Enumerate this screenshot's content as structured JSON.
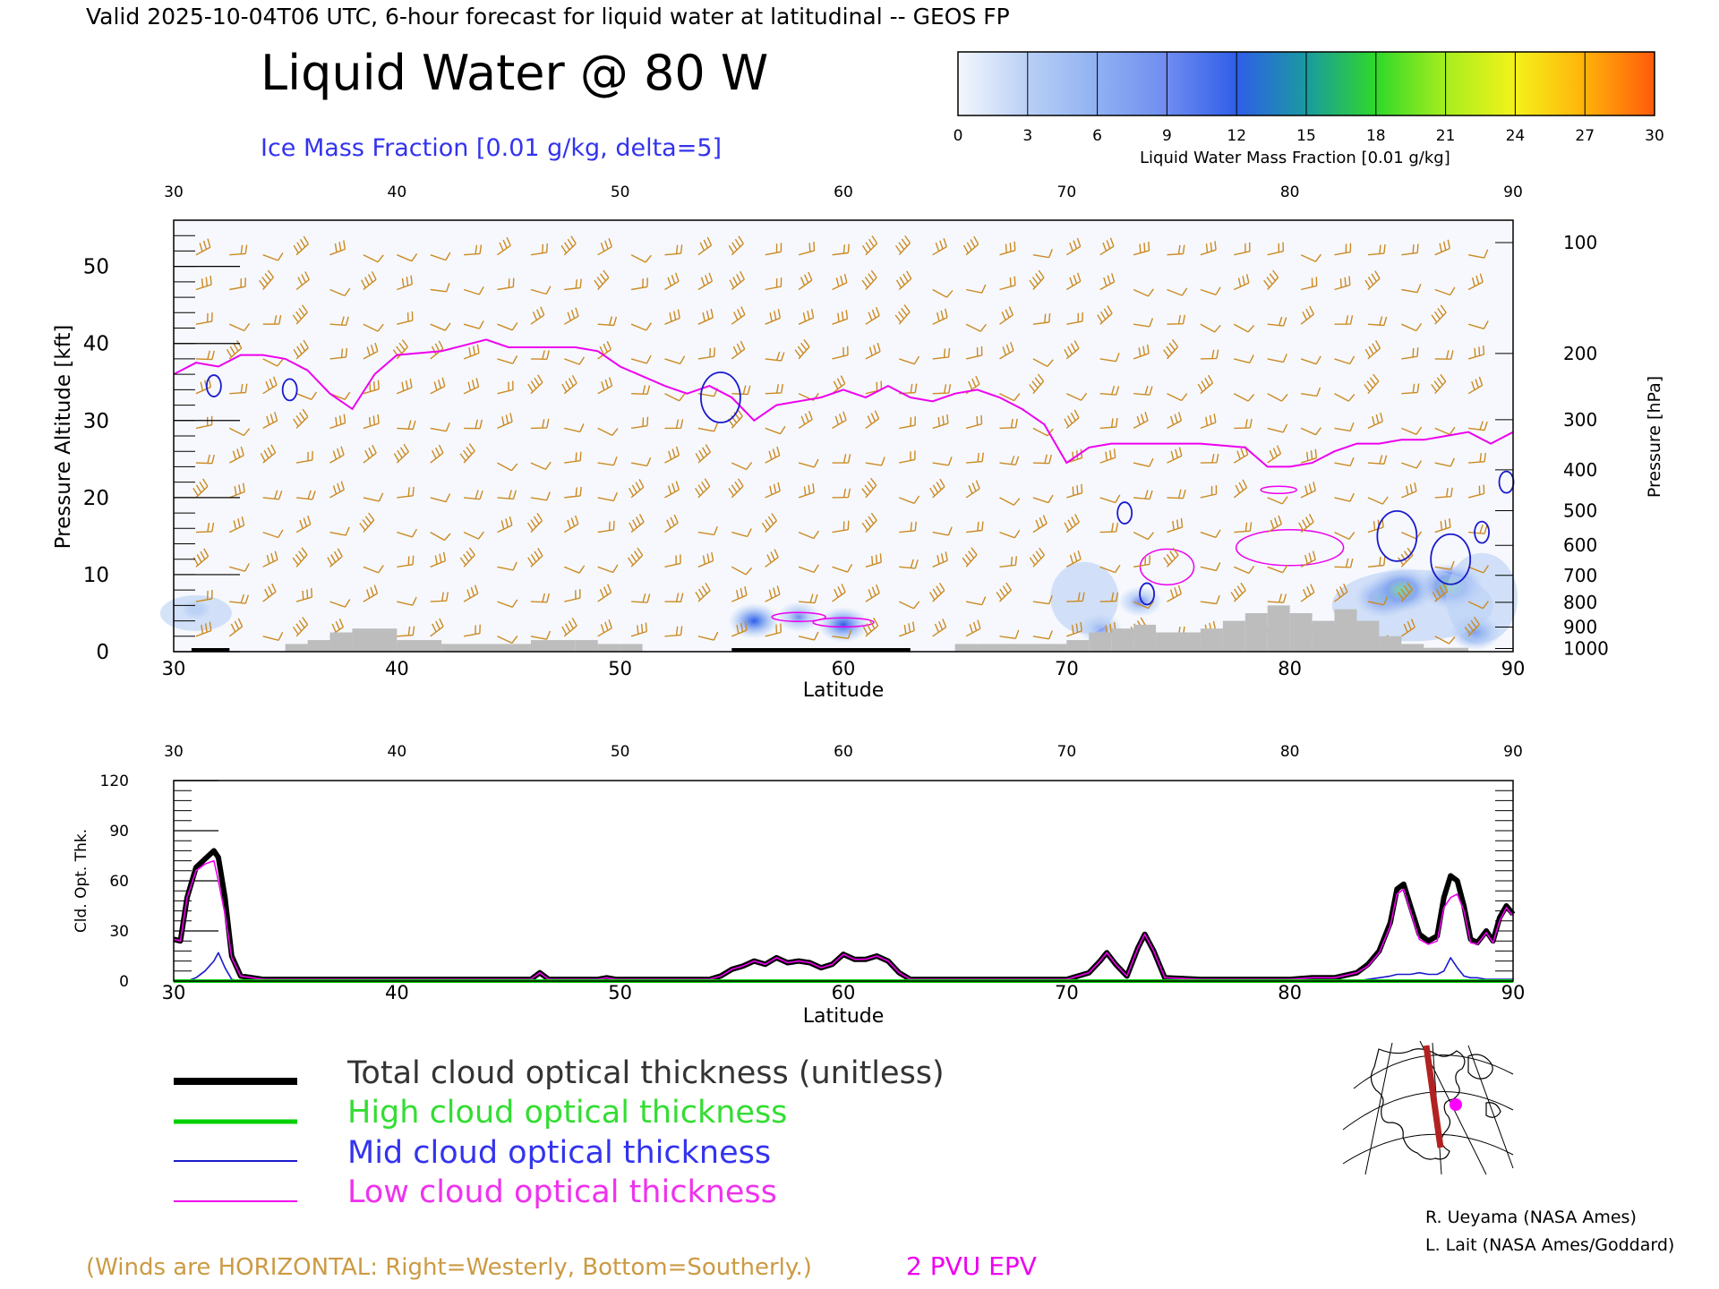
{
  "header": {
    "valid_line": "Valid 2025-10-04T06 UTC, 6-hour forecast for liquid water at latitudinal -- GEOS FP",
    "title": "Liquid Water @ 80 W",
    "subtitle": "Ice Mass Fraction [0.01 g/kg, delta=5]"
  },
  "colorbar": {
    "ticks": [
      "0",
      "3",
      "6",
      "9",
      "12",
      "15",
      "18",
      "21",
      "24",
      "27",
      "30"
    ],
    "colors": [
      "#f4f7fd",
      "#b9d0f5",
      "#8fb1f2",
      "#6f8cf0",
      "#2f5ee8",
      "#1a9aa0",
      "#2fd82a",
      "#a6ee1e",
      "#f4f21a",
      "#ffb20a",
      "#ff5a0a"
    ],
    "label": "Liquid Water Mass Fraction [0.01 g/kg]"
  },
  "chart_data": [
    {
      "type": "heatmap",
      "title": "Liquid Water @ 80 W",
      "xlabel": "Latitude",
      "ylabel": "Pressure Altitude [kft]",
      "ylabel_right": "Pressure [hPa]",
      "xlim": [
        30,
        90
      ],
      "ylim": [
        0,
        56
      ],
      "x_ticks": [
        "30",
        "40",
        "50",
        "60",
        "70",
        "80",
        "90"
      ],
      "x_tick_values": [
        30,
        40,
        50,
        60,
        70,
        80,
        90
      ],
      "y_ticks": [
        "0",
        "10",
        "20",
        "30",
        "40",
        "50"
      ],
      "y_tick_values": [
        0,
        10,
        20,
        30,
        40,
        50
      ],
      "pressure_ticks": [
        "100",
        "200",
        "300",
        "400",
        "500",
        "600",
        "700",
        "800",
        "900",
        "1000"
      ],
      "pressure_tick_kft": [
        53.1,
        38.7,
        30.1,
        23.6,
        18.3,
        13.8,
        9.9,
        6.4,
        3.2,
        0.4
      ],
      "epv_2pvu_line": {
        "lat": [
          30,
          31,
          32,
          33,
          34,
          35,
          36,
          37,
          38,
          39,
          40,
          42,
          44,
          45,
          46,
          48,
          49,
          50,
          52,
          53,
          54,
          55,
          56,
          57,
          58,
          59,
          60,
          61,
          62,
          63,
          64,
          65,
          66,
          67,
          68,
          69,
          70,
          71,
          72,
          73,
          74,
          76,
          78,
          79,
          80,
          81,
          82,
          83,
          84,
          85,
          86,
          87,
          88,
          89,
          90
        ],
        "kft": [
          36,
          37.5,
          37,
          38.5,
          38.5,
          38,
          36.5,
          33.5,
          31.5,
          36,
          38.5,
          39,
          40.5,
          39.5,
          39.5,
          39.5,
          39,
          37,
          34.5,
          33.5,
          34.5,
          33,
          30,
          32,
          32.5,
          33,
          34,
          33,
          34.5,
          33,
          32.5,
          33.5,
          34,
          33,
          31.5,
          29.5,
          24.5,
          26.5,
          27,
          27,
          27,
          27,
          26.5,
          24,
          24,
          24.5,
          26,
          27,
          27,
          27.5,
          27.5,
          28,
          28.5,
          27,
          28.5
        ]
      },
      "ice_mass_fraction_contours": [
        {
          "lat": 31.8,
          "kft": 34.5
        },
        {
          "lat": 35.2,
          "kft": 34
        },
        {
          "lat": 54.5,
          "kft": 33
        },
        {
          "lat": 72.6,
          "kft": 18
        },
        {
          "lat": 73.6,
          "kft": 7.5
        },
        {
          "lat": 84.8,
          "kft": 15
        },
        {
          "lat": 87.2,
          "kft": 12
        },
        {
          "lat": 88.6,
          "kft": 15.5
        },
        {
          "lat": 89.7,
          "kft": 22
        }
      ],
      "liquid_water_blobs": [
        {
          "lat": 31,
          "kft": 5.5,
          "value": 3
        },
        {
          "lat": 56,
          "kft": 4,
          "value": 12
        },
        {
          "lat": 58,
          "kft": 4.5,
          "value": 9
        },
        {
          "lat": 60,
          "kft": 3.5,
          "value": 12
        },
        {
          "lat": 71.5,
          "kft": 3,
          "value": 9
        },
        {
          "lat": 73.3,
          "kft": 6.5,
          "value": 9
        },
        {
          "lat": 84.2,
          "kft": 7,
          "value": 15
        },
        {
          "lat": 85,
          "kft": 8,
          "value": 18
        },
        {
          "lat": 87.2,
          "kft": 8.5,
          "value": 18
        },
        {
          "lat": 88.3,
          "kft": 2.5,
          "value": 12
        }
      ],
      "terrain": {
        "lat": [
          30,
          32.5,
          33.5,
          35,
          36,
          37,
          38,
          40,
          42,
          44,
          46,
          48,
          49,
          50,
          51,
          52,
          53,
          55,
          58,
          60,
          62,
          63,
          64,
          65,
          66,
          68,
          70,
          71,
          72,
          73,
          74,
          75,
          76,
          77,
          78,
          79,
          80,
          81,
          82,
          83,
          84,
          85,
          86,
          87,
          88,
          89,
          90
        ],
        "kft": [
          0,
          0,
          0,
          1,
          1.5,
          2.5,
          3,
          1.5,
          1,
          1,
          1.5,
          1.5,
          1,
          1,
          0,
          0,
          0,
          0,
          0,
          0,
          0,
          0,
          0,
          1,
          1,
          1,
          1.5,
          2.5,
          3,
          3.5,
          2.5,
          2.5,
          3,
          4,
          5,
          6,
          5,
          4,
          5.5,
          4,
          2,
          1,
          0.5,
          0.5,
          0,
          0,
          0
        ]
      }
    },
    {
      "type": "line",
      "xlabel": "Latitude",
      "ylabel": "Cld. Opt. Thk.",
      "xlim": [
        30,
        90
      ],
      "ylim": [
        0,
        120
      ],
      "x_ticks": [
        "30",
        "40",
        "50",
        "60",
        "70",
        "80",
        "90"
      ],
      "x_tick_values": [
        30,
        40,
        50,
        60,
        70,
        80,
        90
      ],
      "y_ticks": [
        "0",
        "30",
        "60",
        "90",
        "120"
      ],
      "y_tick_values": [
        0,
        30,
        60,
        90,
        120
      ],
      "x": [
        30,
        30.3,
        30.6,
        31,
        31.4,
        31.8,
        32,
        32.3,
        32.6,
        33,
        34,
        40,
        45,
        46,
        46.4,
        46.8,
        47.5,
        49,
        49.4,
        49.8,
        52,
        54,
        54.5,
        55,
        55.5,
        56,
        56.5,
        57,
        57.5,
        58,
        58.5,
        59,
        59.5,
        60,
        60.5,
        61,
        61.5,
        62,
        62.5,
        63,
        65,
        70,
        71,
        71.5,
        71.8,
        72.2,
        72.7,
        73.2,
        73.5,
        73.9,
        74.4,
        76,
        80,
        81,
        82,
        83,
        83.5,
        84,
        84.5,
        84.8,
        85.1,
        85.4,
        85.8,
        86.2,
        86.6,
        86.9,
        87.2,
        87.5,
        87.8,
        88.1,
        88.4,
        88.8,
        89.1,
        89.4,
        89.7,
        90
      ],
      "series": [
        {
          "name": "Total cloud optical thickness (unitless)",
          "color": "#000000",
          "values": [
            25,
            24,
            50,
            68,
            73,
            78,
            74,
            50,
            15,
            3,
            1,
            1,
            1,
            1,
            5,
            1,
            1,
            1,
            2,
            1,
            1,
            1,
            3,
            7,
            9,
            12,
            10,
            14,
            11,
            12,
            11,
            8,
            10,
            16,
            13,
            13,
            15,
            12,
            5,
            1,
            1,
            1,
            5,
            12,
            17,
            10,
            3,
            20,
            28,
            18,
            2,
            1,
            1,
            2,
            2,
            5,
            10,
            18,
            35,
            55,
            58,
            45,
            28,
            24,
            27,
            50,
            63,
            60,
            45,
            25,
            23,
            30,
            24,
            38,
            45,
            40
          ]
        },
        {
          "name": "High cloud optical thickness",
          "color": "#00d000",
          "values": [
            0,
            0,
            0,
            0,
            0,
            0,
            0,
            0,
            0,
            0,
            0,
            0,
            0,
            0,
            0,
            0,
            0,
            0,
            0,
            0,
            0,
            0,
            0,
            0,
            0,
            0,
            0,
            0,
            0,
            0,
            0,
            0,
            0,
            0,
            0,
            0,
            0,
            0,
            0,
            0,
            0,
            0,
            0,
            0,
            0,
            0,
            0,
            0,
            0,
            0,
            0,
            0,
            0,
            0,
            0,
            0,
            0,
            0,
            0,
            0,
            0,
            0,
            0,
            0,
            0,
            0,
            0,
            0,
            0,
            0,
            0,
            0,
            0,
            0,
            0,
            0
          ]
        },
        {
          "name": "Mid cloud optical thickness",
          "color": "#1a1acc",
          "values": [
            0,
            0,
            0,
            2,
            6,
            12,
            17,
            8,
            1,
            0,
            0,
            0,
            0,
            0,
            0,
            0,
            0,
            0,
            0,
            0,
            0,
            0,
            0,
            0,
            0,
            0,
            0,
            0,
            0,
            0,
            0,
            0,
            0,
            0,
            0,
            0,
            0,
            0,
            0,
            0,
            0,
            0,
            0,
            0,
            0,
            0,
            0,
            0,
            0,
            0,
            0,
            0,
            0,
            0,
            0,
            0,
            1,
            2,
            3,
            4,
            4,
            4,
            5,
            4,
            4,
            6,
            14,
            8,
            3,
            2,
            2,
            1,
            1,
            1,
            1,
            1
          ]
        },
        {
          "name": "Low cloud optical thickness",
          "color": "#ee00ee",
          "values": [
            25,
            24,
            50,
            66,
            70,
            72,
            60,
            40,
            14,
            3,
            1,
            1,
            1,
            1,
            5,
            1,
            1,
            1,
            2,
            1,
            1,
            1,
            3,
            7,
            9,
            12,
            10,
            14,
            11,
            12,
            11,
            8,
            10,
            16,
            13,
            13,
            15,
            12,
            5,
            1,
            1,
            1,
            5,
            12,
            17,
            10,
            3,
            20,
            28,
            18,
            2,
            1,
            1,
            2,
            2,
            5,
            9,
            17,
            33,
            52,
            55,
            42,
            25,
            22,
            24,
            44,
            50,
            52,
            42,
            23,
            22,
            29,
            23,
            36,
            44,
            39
          ]
        }
      ]
    }
  ],
  "legend": {
    "total": "Total cloud optical thickness (unitless)",
    "high": "High cloud optical thickness",
    "mid": "Mid cloud optical thickness",
    "low": "Low cloud optical thickness"
  },
  "footer": {
    "winds_note": "(Winds are HORIZONTAL: Right=Westerly, Bottom=Southerly.)",
    "epv_label": "2 PVU EPV",
    "credit1": "R. Ueyama (NASA Ames)",
    "credit2": "L. Lait (NASA Ames/Goddard)"
  },
  "colors": {
    "epv": "#ee00ee",
    "ice": "#1a1acc",
    "wind": "#cc8a22",
    "terrain": "#bdbdbd",
    "subtitle": "#3333ee",
    "high_legend_text": "#33dd33",
    "mid_legend_text": "#3333ee",
    "low_legend_text": "#ee33ee",
    "footer_note": "#cc9a44"
  }
}
